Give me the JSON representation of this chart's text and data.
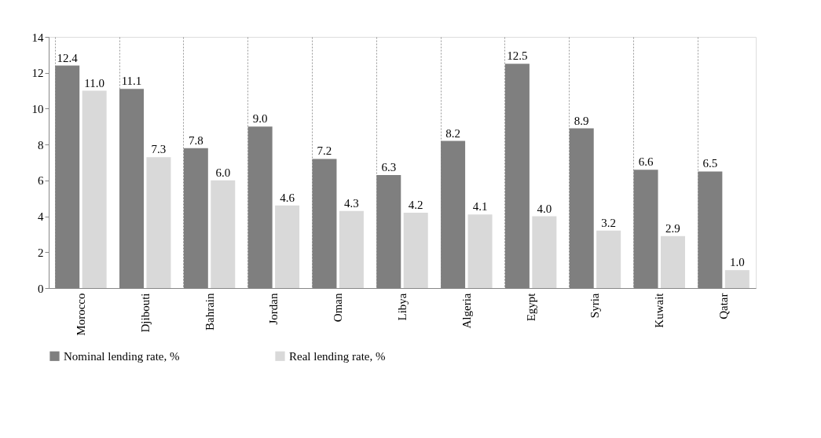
{
  "chart_data": {
    "type": "bar",
    "categories": [
      "Morocco",
      "Djibouti",
      "Bahrain",
      "Jordan",
      "Oman",
      "Libya",
      "Algeria",
      "Egypt",
      "Syria",
      "Kuwait",
      "Qatar"
    ],
    "series": [
      {
        "name": "Nominal lending rate, %",
        "color": "#7f7f7f",
        "values": [
          12.4,
          11.1,
          7.8,
          9.0,
          7.2,
          6.3,
          8.2,
          12.5,
          8.9,
          6.6,
          6.5
        ],
        "value_labels": [
          "12.4",
          "11.1",
          "7.8",
          "9.0",
          "7.2",
          "6.3",
          "8.2",
          "12.5",
          "8.9",
          "6.6",
          "6.5"
        ]
      },
      {
        "name": "Real lending rate, %",
        "color": "#d9d9d9",
        "values": [
          11.0,
          7.3,
          6.0,
          4.6,
          4.3,
          4.2,
          4.1,
          4.0,
          3.2,
          2.9,
          1.0
        ],
        "value_labels": [
          "11.0",
          "7.3",
          "6.0",
          "4.6",
          "4.3",
          "4.2",
          "4.1",
          "4.0",
          "3.2",
          "2.9",
          "1.0"
        ]
      }
    ],
    "ylim": [
      0,
      14
    ],
    "yticks": [
      0,
      2,
      4,
      6,
      8,
      10,
      12,
      14
    ],
    "grid": "x",
    "legend": "bottom"
  }
}
